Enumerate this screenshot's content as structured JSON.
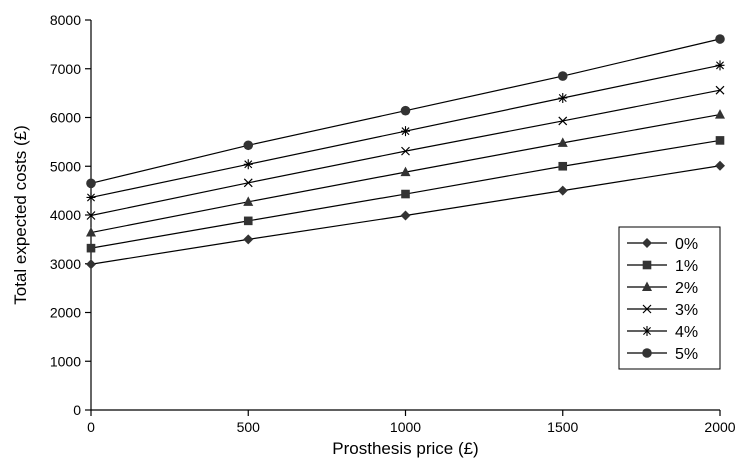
{
  "chart_data": {
    "type": "line",
    "title": "",
    "xlabel": "Prosthesis price (£)",
    "ylabel": "Total expected costs (£)",
    "x": [
      0,
      500,
      1000,
      1500,
      2000
    ],
    "xlim": [
      0,
      2000
    ],
    "ylim": [
      0,
      8000
    ],
    "xticks": [
      "0",
      "500",
      "1000",
      "1500",
      "2000"
    ],
    "yticks": [
      "0",
      "1000",
      "2000",
      "3000",
      "4000",
      "5000",
      "6000",
      "7000",
      "8000"
    ],
    "grid": false,
    "legend_position": "right",
    "series": [
      {
        "name": "0%",
        "marker": "diamond",
        "values": [
          2990,
          3500,
          3990,
          4500,
          5010
        ]
      },
      {
        "name": "1%",
        "marker": "square",
        "values": [
          3320,
          3880,
          4430,
          5000,
          5530
        ]
      },
      {
        "name": "2%",
        "marker": "triangle",
        "values": [
          3640,
          4270,
          4880,
          5480,
          6060
        ]
      },
      {
        "name": "3%",
        "marker": "x",
        "values": [
          3990,
          4660,
          5310,
          5930,
          6560
        ]
      },
      {
        "name": "4%",
        "marker": "star",
        "values": [
          4360,
          5040,
          5720,
          6400,
          7070
        ]
      },
      {
        "name": "5%",
        "marker": "circle",
        "values": [
          4650,
          5430,
          6140,
          6850,
          7610
        ]
      }
    ]
  }
}
